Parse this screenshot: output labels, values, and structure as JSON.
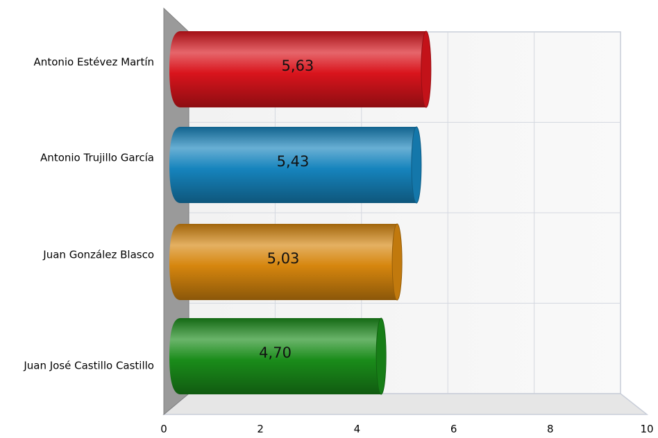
{
  "chart_data": {
    "type": "bar",
    "orientation": "horizontal",
    "style": "3d-cylinder",
    "categories": [
      "Antonio Estévez Martín",
      "Antonio Trujillo García",
      "Juan González Blasco",
      "Juan José Castillo Castillo"
    ],
    "values": [
      5.63,
      5.43,
      5.03,
      4.7
    ],
    "value_labels": [
      "5,63",
      "5,43",
      "5,03",
      "4,70"
    ],
    "colors": [
      "#d9141c",
      "#1684bd",
      "#d6860e",
      "#1a8c1a"
    ],
    "xlim": [
      0,
      10
    ],
    "x_ticks": [
      "0",
      "2",
      "4",
      "6",
      "8",
      "10"
    ],
    "grid": true,
    "legend": "none",
    "title": "",
    "xlabel": "",
    "ylabel": ""
  }
}
